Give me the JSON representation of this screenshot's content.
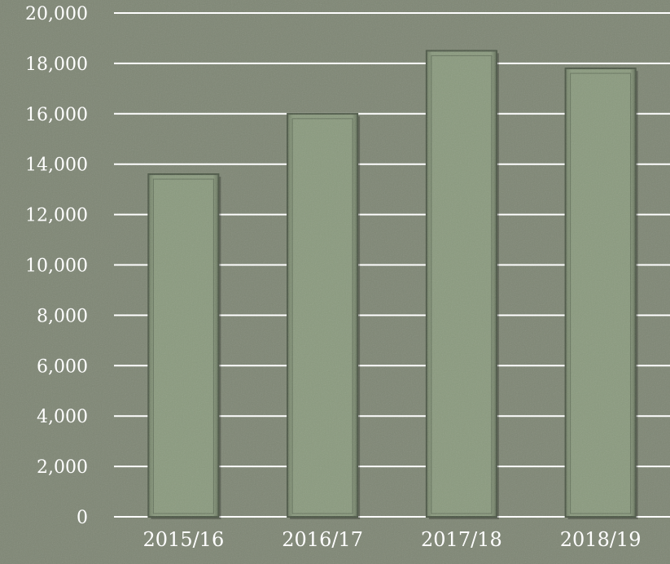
{
  "chart_data": {
    "type": "bar",
    "title": "",
    "xlabel": "",
    "ylabel": "",
    "categories": [
      "2015/16",
      "2016/17",
      "2017/18",
      "2018/19"
    ],
    "values": [
      13600,
      16000,
      18500,
      17800
    ],
    "ylim": [
      0,
      20000
    ],
    "yticks": [
      0,
      2000,
      4000,
      6000,
      8000,
      10000,
      12000,
      14000,
      16000,
      18000,
      20000
    ],
    "ytick_labels": [
      "0",
      "2,000",
      "4,000",
      "6,000",
      "8,000",
      "10,000",
      "12,000",
      "14,000",
      "16,000",
      "18,000",
      "20,000"
    ],
    "grid": true,
    "legend": "none"
  },
  "colors": {
    "background": "#7e8674",
    "bar_fill": "#7f8f73",
    "bar_border": "#4f5a49",
    "gridline": "#ffffff",
    "text": "#ffffff"
  }
}
